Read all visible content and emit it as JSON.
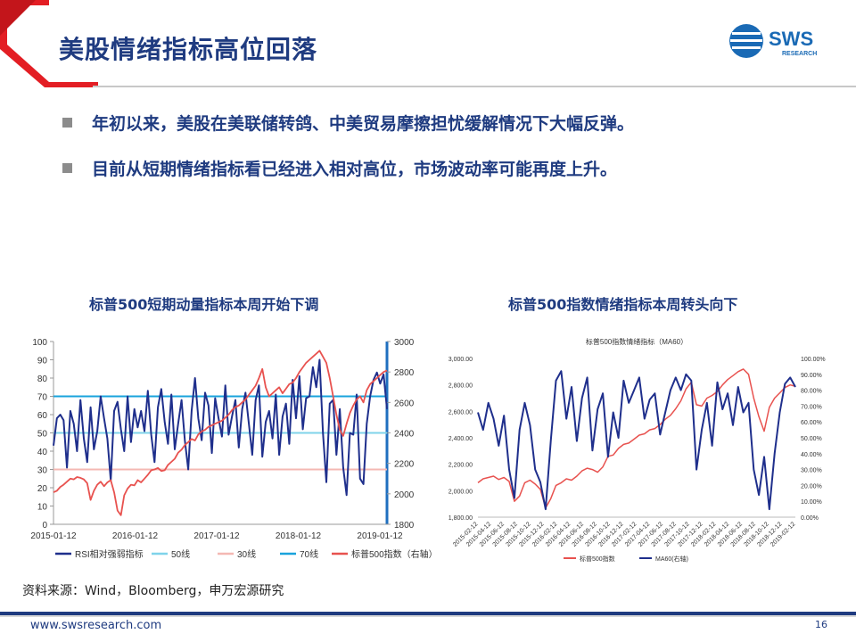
{
  "header": {
    "title": "美股情绪指标高位回落",
    "logo_text": "SWS",
    "logo_sub": "RESEARCH"
  },
  "bullets": [
    "年初以来，美股在美联储转鸽、中美贸易摩擦担忧缓解情况下大幅反弹。",
    "目前从短期情绪指标看已经进入相对高位，市场波动率可能再度上升。"
  ],
  "chart_data": [
    {
      "type": "line",
      "title": "标普500短期动量指标本周开始下调",
      "x_ticks": [
        "2015-01-12",
        "2016-01-12",
        "2017-01-12",
        "2018-01-12",
        "2019-01-12"
      ],
      "ylim_left": [
        0,
        100
      ],
      "ylim_right": [
        1800,
        3000
      ],
      "y_ticks_left": [
        0,
        10,
        20,
        30,
        40,
        50,
        60,
        70,
        80,
        90,
        100
      ],
      "y_ticks_right": [
        1800,
        2000,
        2200,
        2400,
        2600,
        2800,
        3000
      ],
      "reference_lines": [
        {
          "name": "50线",
          "value": 50,
          "color": "#7fd3ea"
        },
        {
          "name": "30线",
          "value": 30,
          "color": "#f4b8b3"
        },
        {
          "name": "70线",
          "value": 70,
          "color": "#1aa3dc"
        }
      ],
      "series": [
        {
          "name": "RSI相对强弱指标",
          "axis": "left",
          "color": "#1f2f8c",
          "values": [
            43,
            58,
            60,
            57,
            31,
            62,
            55,
            40,
            68,
            47,
            34,
            64,
            41,
            51,
            70,
            58,
            47,
            24,
            62,
            67,
            52,
            40,
            70,
            45,
            63,
            53,
            62,
            51,
            73,
            49,
            34,
            64,
            74,
            56,
            44,
            71,
            41,
            55,
            68,
            46,
            30,
            62,
            80,
            58,
            46,
            72,
            65,
            39,
            69,
            58,
            48,
            76,
            49,
            59,
            68,
            42,
            63,
            72,
            55,
            38,
            68,
            76,
            37,
            56,
            62,
            47,
            71,
            38,
            59,
            66,
            44,
            79,
            58,
            81,
            52,
            69,
            70,
            86,
            75,
            90,
            50,
            23,
            66,
            68,
            38,
            63,
            31,
            16,
            50,
            49,
            71,
            25,
            22,
            55,
            70,
            79,
            83,
            77,
            82,
            63
          ]
        },
        {
          "name": "标普500指数（右轴）",
          "axis": "right",
          "color": "#e8524f",
          "values": [
            2010,
            2020,
            2045,
            2060,
            2080,
            2100,
            2095,
            2110,
            2105,
            2095,
            2070,
            1960,
            2020,
            2060,
            2080,
            2050,
            2075,
            2090,
            2010,
            1890,
            1860,
            1990,
            2035,
            2060,
            2055,
            2090,
            2075,
            2100,
            2125,
            2155,
            2160,
            2170,
            2150,
            2155,
            2190,
            2210,
            2230,
            2270,
            2290,
            2320,
            2340,
            2360,
            2350,
            2390,
            2410,
            2420,
            2440,
            2450,
            2460,
            2470,
            2480,
            2500,
            2520,
            2550,
            2570,
            2580,
            2600,
            2620,
            2650,
            2680,
            2710,
            2760,
            2820,
            2700,
            2640,
            2660,
            2680,
            2700,
            2660,
            2690,
            2720,
            2730,
            2760,
            2800,
            2830,
            2860,
            2880,
            2900,
            2920,
            2940,
            2900,
            2860,
            2760,
            2640,
            2520,
            2420,
            2380,
            2460,
            2530,
            2580,
            2620,
            2640,
            2600,
            2680,
            2720,
            2740,
            2760,
            2780,
            2800,
            2810
          ]
        }
      ]
    },
    {
      "type": "line",
      "title": "标普500指数情绪指标本周转头向下",
      "inner_title": "标普500指数情绪指标（MA60）",
      "ylim_left": [
        1800,
        3000
      ],
      "ylim_right": [
        0,
        1
      ],
      "y_ticks_left": [
        "1,800.00",
        "2,000.00",
        "2,200.00",
        "2,400.00",
        "2,600.00",
        "2,800.00",
        "3,000.00"
      ],
      "y_ticks_right": [
        "0.00%",
        "10.00%",
        "20.00%",
        "30.00%",
        "40.00%",
        "50.00%",
        "60.00%",
        "70.00%",
        "80.00%",
        "90.00%",
        "100.00%"
      ],
      "x_ticks": [
        "2015-02-12",
        "2015-04-12",
        "2015-06-12",
        "2015-08-12",
        "2015-10-12",
        "2015-12-12",
        "2016-02-12",
        "2016-04-12",
        "2016-06-12",
        "2016-08-12",
        "2016-10-12",
        "2016-12-12",
        "2017-02-12",
        "2017-04-12",
        "2017-06-12",
        "2017-08-12",
        "2017-10-12",
        "2017-12-12",
        "2018-02-12",
        "2018-04-12",
        "2018-06-12",
        "2018-08-12",
        "2018-10-12",
        "2018-12-12",
        "2019-02-12"
      ],
      "series": [
        {
          "name": "标普500指数",
          "axis": "left",
          "color": "#e8524f",
          "values": [
            2060,
            2090,
            2100,
            2110,
            2085,
            2100,
            2070,
            1920,
            1960,
            2060,
            2080,
            2050,
            2010,
            1870,
            1940,
            2040,
            2060,
            2090,
            2080,
            2110,
            2150,
            2170,
            2160,
            2140,
            2180,
            2260,
            2270,
            2320,
            2350,
            2360,
            2390,
            2420,
            2430,
            2460,
            2470,
            2500,
            2540,
            2570,
            2620,
            2680,
            2770,
            2820,
            2650,
            2640,
            2700,
            2720,
            2750,
            2800,
            2840,
            2870,
            2900,
            2920,
            2880,
            2700,
            2560,
            2450,
            2630,
            2700,
            2740,
            2780,
            2800,
            2790
          ]
        },
        {
          "name": "MA60(右轴)",
          "axis": "right",
          "color": "#1f2f8c",
          "values": [
            0.66,
            0.55,
            0.72,
            0.62,
            0.45,
            0.64,
            0.3,
            0.12,
            0.55,
            0.72,
            0.58,
            0.3,
            0.22,
            0.05,
            0.48,
            0.86,
            0.92,
            0.62,
            0.82,
            0.48,
            0.75,
            0.88,
            0.42,
            0.68,
            0.78,
            0.38,
            0.66,
            0.5,
            0.86,
            0.72,
            0.8,
            0.88,
            0.62,
            0.74,
            0.78,
            0.52,
            0.66,
            0.8,
            0.88,
            0.8,
            0.9,
            0.86,
            0.3,
            0.55,
            0.72,
            0.45,
            0.85,
            0.68,
            0.78,
            0.58,
            0.82,
            0.66,
            0.72,
            0.3,
            0.14,
            0.38,
            0.05,
            0.4,
            0.66,
            0.84,
            0.88,
            0.82
          ]
        }
      ],
      "legend_placement": "bottom"
    }
  ],
  "source": "资料来源：Wind，Bloomberg，申万宏源研究",
  "footer": {
    "url": "www.swsresearch.com",
    "page": "16"
  }
}
